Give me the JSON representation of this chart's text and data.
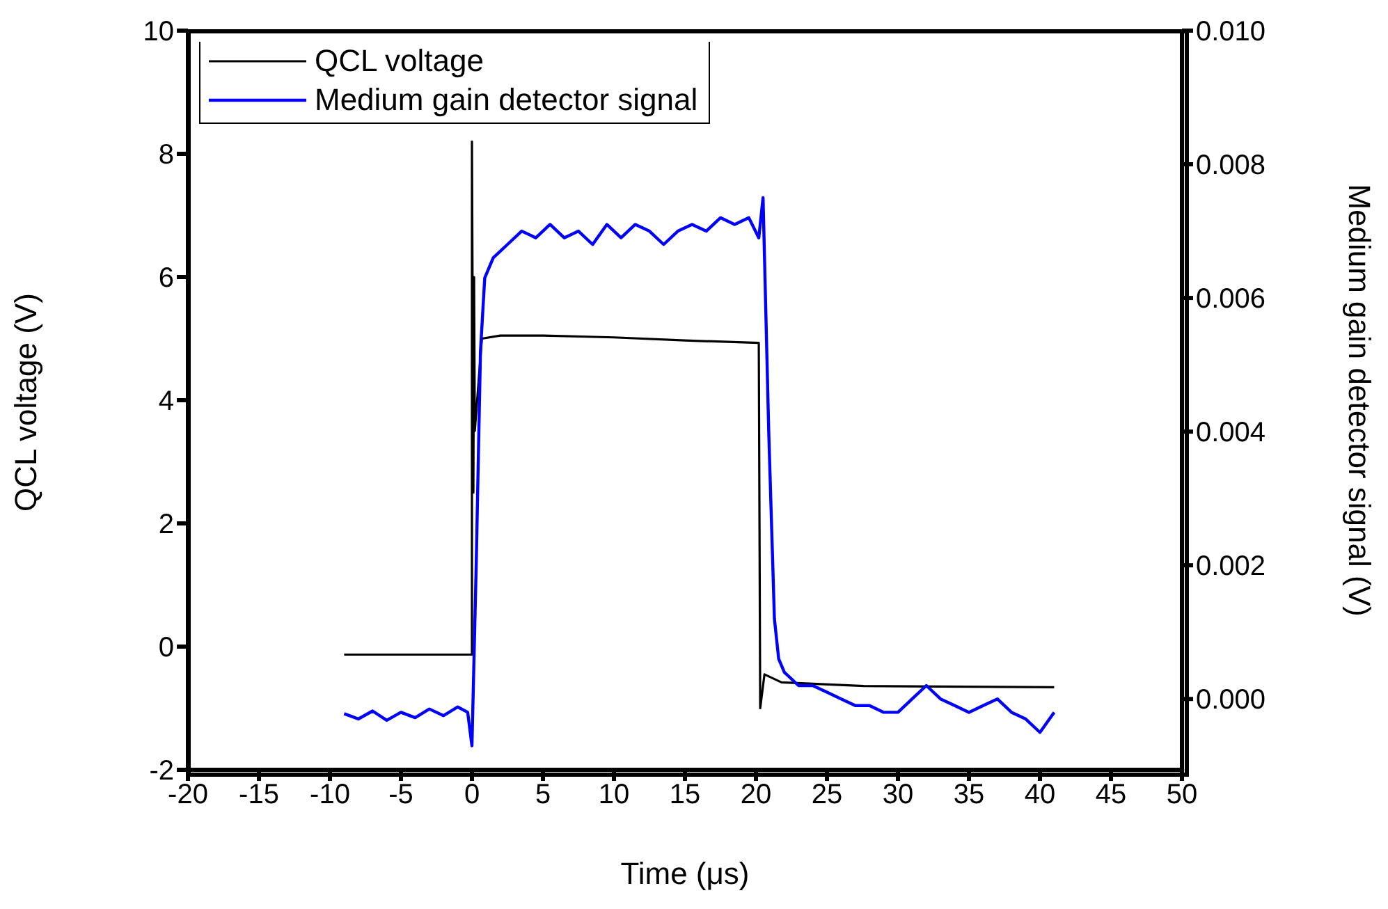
{
  "chart_data": {
    "type": "line",
    "xlabel": "Time (μs)",
    "ylabel": "QCL voltage (V)",
    "y2label": "Medium gain detector signal (V)",
    "xlim": [
      -20,
      50
    ],
    "xticks": [
      -20,
      -15,
      -10,
      -5,
      0,
      5,
      10,
      15,
      20,
      25,
      30,
      35,
      40,
      45,
      50
    ],
    "ylim": [
      -2,
      10
    ],
    "yticks": [
      -2,
      0,
      2,
      4,
      6,
      8,
      10
    ],
    "y2lim": [
      -0.00106,
      0.01
    ],
    "y2ticks": [
      {
        "value": 0,
        "label": "0.000"
      },
      {
        "value": 0.002,
        "label": "0.002"
      },
      {
        "value": 0.004,
        "label": "0.004"
      },
      {
        "value": 0.006,
        "label": "0.006"
      },
      {
        "value": 0.008,
        "label": "0.008"
      },
      {
        "value": 0.01,
        "label": "0.010"
      }
    ],
    "legend": "top left",
    "marker": "none",
    "line_style": "solid",
    "series": [
      {
        "name": "QCL voltage",
        "color": "#000000",
        "x": [
          -9,
          -4,
          0,
          0,
          0.1,
          0.15,
          0.2,
          0.7,
          2,
          5,
          10,
          15,
          20.2,
          20.3,
          20.6,
          21.8,
          27.6,
          41
        ],
        "values": [
          -0.13,
          -0.13,
          -0.13,
          8.2,
          2.5,
          6.0,
          3.5,
          5.0,
          5.05,
          5.05,
          5.02,
          4.97,
          4.93,
          -1.0,
          -0.45,
          -0.58,
          -0.64,
          -0.66
        ]
      },
      {
        "name": "Medium gain detector signal",
        "color": "#0000ff",
        "axis": "y2",
        "x": [
          -9,
          -8,
          -7,
          -6,
          -5,
          -4,
          -3,
          -2,
          -1,
          -0.3,
          0,
          0.3,
          0.6,
          0.9,
          1.5,
          2.5,
          3.5,
          4.5,
          5.5,
          6.5,
          7.5,
          8.5,
          9.5,
          10.5,
          11.5,
          12.5,
          13.5,
          14.5,
          15.5,
          16.5,
          17.5,
          18.5,
          19.5,
          20.2,
          20.5,
          20.9,
          21.3,
          21.6,
          22,
          23,
          24,
          25,
          26,
          27,
          28,
          29,
          30,
          31,
          32,
          33,
          34,
          35,
          36,
          37,
          38,
          39,
          40,
          41
        ],
        "values": [
          -0.00022,
          -0.0003,
          -0.00018,
          -0.00032,
          -0.0002,
          -0.00028,
          -0.00015,
          -0.00025,
          -0.00012,
          -0.0002,
          -0.0007,
          0.002,
          0.0052,
          0.0063,
          0.0066,
          0.0068,
          0.007,
          0.0069,
          0.0071,
          0.0069,
          0.007,
          0.0068,
          0.0071,
          0.0069,
          0.0071,
          0.007,
          0.0068,
          0.007,
          0.0071,
          0.007,
          0.0072,
          0.0071,
          0.0072,
          0.0069,
          0.0075,
          0.004,
          0.0012,
          0.0006,
          0.0004,
          0.0002,
          0.0002,
          0.0001,
          0.0,
          -0.0001,
          -0.0001,
          -0.0002,
          -0.0002,
          0.0,
          0.0002,
          0.0,
          -0.0001,
          -0.0002,
          -0.0001,
          0.0,
          -0.0002,
          -0.0003,
          -0.0005,
          -0.0002
        ]
      }
    ]
  }
}
